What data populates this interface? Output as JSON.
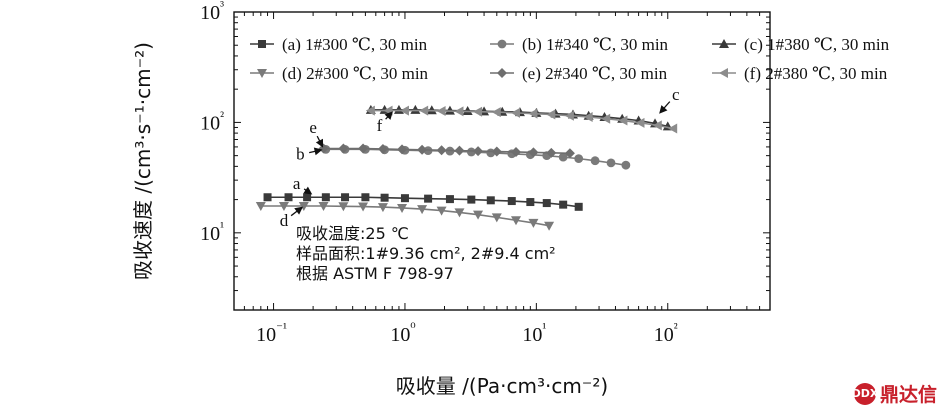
{
  "chart_data": {
    "type": "scatter",
    "xlabel": "吸收量 /(Pa·cm³·cm⁻²)",
    "ylabel": "吸收速度 /(cm³·s⁻¹·cm⁻²)",
    "xscale": "log",
    "yscale": "log",
    "xlim": [
      0.05,
      600
    ],
    "ylim": [
      2,
      1000
    ],
    "x_ticks": [
      "10⁻¹",
      "10⁰",
      "10¹",
      "10²"
    ],
    "y_ticks": [
      "10¹",
      "10²",
      "10³"
    ],
    "legend_position": "top",
    "series": [
      {
        "name": "(a) 1#300 ℃, 30 min",
        "marker": "square",
        "x": [
          0.09,
          0.13,
          0.18,
          0.25,
          0.35,
          0.5,
          0.7,
          1.0,
          1.5,
          2.2,
          3.2,
          4.5,
          6.5,
          9,
          12,
          16,
          21
        ],
        "y": [
          21,
          21,
          21,
          21,
          21,
          21,
          20.8,
          20.6,
          20.4,
          20.2,
          20,
          19.7,
          19.4,
          19,
          18.6,
          18,
          17.2
        ]
      },
      {
        "name": "(b) 1#340 ℃, 30 min",
        "marker": "circle",
        "x": [
          0.25,
          0.35,
          0.5,
          0.7,
          1.0,
          1.5,
          2.2,
          3.2,
          4.5,
          6.5,
          9,
          12,
          16,
          21,
          28,
          37,
          48
        ],
        "y": [
          57,
          57,
          57,
          56.5,
          56,
          55.5,
          55,
          54,
          53,
          52,
          51,
          50,
          48.5,
          47,
          45,
          43,
          41
        ]
      },
      {
        "name": "(c) 1#380 ℃, 30 min",
        "marker": "triangle-up",
        "x": [
          0.55,
          0.7,
          0.9,
          1.2,
          1.6,
          2.2,
          3.0,
          4.0,
          5.5,
          7.5,
          10,
          14,
          19,
          25,
          33,
          45,
          60,
          80,
          100
        ],
        "y": [
          130,
          130,
          130,
          130,
          129,
          128,
          127,
          126,
          125,
          124,
          122,
          120,
          118,
          115,
          112,
          108,
          104,
          98,
          92
        ]
      },
      {
        "name": "(d) 2#300 ℃, 30 min",
        "marker": "triangle-down",
        "x": [
          0.08,
          0.12,
          0.17,
          0.24,
          0.34,
          0.48,
          0.68,
          0.95,
          1.35,
          1.9,
          2.6,
          3.6,
          5,
          7,
          9.5,
          12.5
        ],
        "y": [
          17.5,
          17.5,
          17.5,
          17.5,
          17.4,
          17.3,
          17.1,
          16.8,
          16.4,
          15.9,
          15.3,
          14.6,
          13.8,
          13,
          12.3,
          11.6
        ]
      },
      {
        "name": "(e) 2#340 ℃, 30 min",
        "marker": "diamond",
        "x": [
          0.24,
          0.34,
          0.48,
          0.68,
          0.95,
          1.35,
          1.9,
          2.6,
          3.6,
          5,
          7,
          9.5,
          13,
          18
        ],
        "y": [
          58,
          58,
          58,
          57.5,
          57,
          56.5,
          56,
          55.5,
          55,
          54.5,
          54,
          53.5,
          53,
          52.5
        ]
      },
      {
        "name": "(f) 2#380 ℃, 30 min",
        "marker": "triangle-left",
        "x": [
          0.55,
          0.75,
          1.0,
          1.4,
          1.9,
          2.6,
          3.6,
          5,
          7,
          9.5,
          13,
          18,
          25,
          34,
          46,
          62,
          84,
          110
        ],
        "y": [
          128,
          128,
          128,
          128,
          127,
          126,
          125,
          124,
          122,
          120,
          118,
          115,
          112,
          108,
          104,
          99,
          94,
          88
        ]
      }
    ],
    "point_labels": [
      {
        "text": "a",
        "x": 0.15,
        "y": 25
      },
      {
        "text": "b",
        "x": 0.16,
        "y": 46
      },
      {
        "text": "c",
        "x": 115,
        "y": 160
      },
      {
        "text": "d",
        "x": 0.12,
        "y": 11.5
      },
      {
        "text": "e",
        "x": 0.2,
        "y": 80
      },
      {
        "text": "f",
        "x": 0.64,
        "y": 84
      }
    ],
    "annotation_lines": [
      "吸收温度:25 ℃",
      "样品面积:1#9.36 cm², 2#9.4 cm²",
      "根据 ASTM F 798-97"
    ]
  },
  "watermark": {
    "text": "鼎达信",
    "logo": "DDX"
  }
}
